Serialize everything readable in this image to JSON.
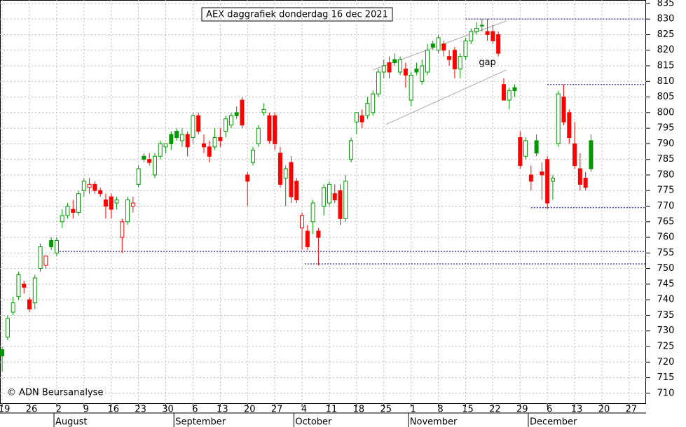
{
  "chart_data": {
    "type": "candlestick",
    "title": "AEX daggrafiek donderdag 16 dec 2021",
    "source": "© ADN Beursanalyse",
    "annotation": {
      "text": "gap",
      "x": 89,
      "y": 816
    },
    "open": [
      724,
      728,
      736,
      741,
      745,
      740,
      739,
      750,
      751,
      759,
      755,
      765,
      767,
      769,
      768,
      775,
      776,
      777,
      775,
      772,
      773,
      771,
      760,
      765,
      770,
      777,
      786,
      785,
      780,
      786,
      789,
      793,
      794,
      791,
      793,
      792,
      799,
      790,
      789,
      789,
      792,
      794,
      796,
      800,
      804,
      780,
      784,
      790,
      800,
      799,
      799,
      787,
      779,
      784,
      778,
      763,
      762,
      765,
      762,
      770,
      771,
      774,
      775,
      766,
      785,
      797,
      799,
      799,
      800,
      806,
      813,
      816,
      817,
      813,
      814,
      804,
      814,
      810,
      813,
      822,
      820,
      822,
      818,
      820,
      814,
      818,
      823,
      826,
      828,
      826,
      826,
      825,
      809,
      804,
      808,
      792,
      786,
      780,
      791,
      781,
      785,
      778,
      790,
      805,
      800,
      790,
      782,
      779,
      791
    ],
    "high": [
      725,
      735,
      741,
      749,
      746,
      741,
      748,
      758,
      754,
      760,
      760,
      769,
      771,
      772,
      775,
      779,
      779,
      778,
      776,
      774,
      774,
      773,
      766,
      773,
      773,
      783,
      787,
      787,
      787,
      791,
      790,
      794,
      795,
      795,
      794,
      800,
      800,
      793,
      791,
      795,
      795,
      799,
      800,
      802,
      805,
      781,
      789,
      796,
      803,
      800,
      800,
      789,
      783,
      786,
      779,
      768,
      764,
      772,
      763,
      777,
      778,
      777,
      777,
      780,
      792,
      800,
      801,
      805,
      807,
      814,
      817,
      818,
      819,
      818,
      816,
      813,
      816,
      817,
      822,
      823,
      825,
      823,
      820,
      821,
      819,
      824,
      827,
      829,
      830,
      830,
      828,
      826,
      811,
      808,
      809,
      794,
      792,
      783,
      793,
      784,
      786,
      780,
      807,
      809,
      801,
      797,
      787,
      781,
      793
    ],
    "low": [
      717,
      727,
      735,
      740,
      742,
      736,
      737,
      749,
      750,
      756,
      754,
      763,
      766,
      766,
      767,
      773,
      774,
      774,
      773,
      766,
      766,
      769,
      755,
      764,
      768,
      776,
      784,
      783,
      779,
      785,
      787,
      788,
      791,
      789,
      786,
      790,
      793,
      787,
      784,
      788,
      789,
      792,
      795,
      798,
      795,
      770,
      783,
      789,
      799,
      790,
      788,
      776,
      770,
      771,
      771,
      756,
      756,
      761,
      751,
      767,
      770,
      771,
      764,
      765,
      784,
      793,
      795,
      798,
      799,
      805,
      811,
      811,
      815,
      812,
      808,
      802,
      812,
      809,
      812,
      820,
      819,
      818,
      815,
      811,
      811,
      817,
      822,
      825,
      826,
      823,
      822,
      818,
      804,
      801,
      805,
      782,
      785,
      775,
      786,
      772,
      769,
      772,
      789,
      796,
      790,
      782,
      775,
      775,
      781
    ],
    "close": [
      722,
      734,
      739,
      748,
      744,
      737,
      747,
      757,
      754,
      757,
      759,
      767,
      770,
      768,
      774,
      778,
      777,
      775,
      774,
      770,
      769,
      772,
      765,
      772,
      771,
      782,
      785,
      784,
      786,
      790,
      790,
      790,
      792,
      793,
      789,
      799,
      794,
      789,
      786,
      792,
      791,
      798,
      799,
      799,
      796,
      778,
      788,
      795,
      801,
      791,
      790,
      777,
      782,
      773,
      772,
      767,
      757,
      771,
      760,
      776,
      777,
      772,
      766,
      778,
      791,
      800,
      797,
      803,
      806,
      813,
      815,
      813,
      816,
      817,
      812,
      812,
      813,
      815,
      820,
      821,
      824,
      820,
      817,
      814,
      818,
      823,
      826,
      827,
      828,
      825,
      823,
      819,
      804,
      807,
      807,
      783,
      791,
      778,
      787,
      780,
      771,
      779,
      806,
      797,
      792,
      783,
      777,
      776,
      782
    ],
    "colors": {
      "up": "#009900",
      "down": "#ff0000"
    },
    "hlines": [
      {
        "y": 830,
        "x0": 85
      },
      {
        "y": 809,
        "x0": 100
      },
      {
        "y": 769.5,
        "x0": 97
      },
      {
        "y": 755.5,
        "x0": 10
      },
      {
        "y": 751.5,
        "x0": 55.5
      }
    ],
    "trendlines": [
      {
        "x": [
          68,
          92.5
        ],
        "y": [
          813.7,
          829.4
        ]
      },
      {
        "x": [
          70.4,
          92.5
        ],
        "y": [
          796.2,
          813.7
        ]
      }
    ],
    "xlim": [
      -0.4,
      118.1
    ],
    "ylim": [
      706.6,
      836.1
    ],
    "yticks": [
      710,
      715,
      720,
      725,
      730,
      735,
      740,
      745,
      750,
      755,
      760,
      765,
      770,
      775,
      780,
      785,
      790,
      795,
      800,
      805,
      810,
      815,
      820,
      825,
      830,
      835
    ],
    "xticks": [
      {
        "value": 0,
        "label": "19"
      },
      {
        "value": 5,
        "label": "26"
      },
      {
        "value": 10,
        "label": "2"
      },
      {
        "value": 15,
        "label": "9"
      },
      {
        "value": 20,
        "label": "16"
      },
      {
        "value": 25,
        "label": "23"
      },
      {
        "value": 30,
        "label": "30"
      },
      {
        "value": 35,
        "label": "6"
      },
      {
        "value": 40,
        "label": "13"
      },
      {
        "value": 45,
        "label": "20"
      },
      {
        "value": 50,
        "label": "27"
      },
      {
        "value": 55,
        "label": "4"
      },
      {
        "value": 60,
        "label": "11"
      },
      {
        "value": 65,
        "label": "18"
      },
      {
        "value": 70,
        "label": "25"
      },
      {
        "value": 75,
        "label": "1"
      },
      {
        "value": 80,
        "label": "8"
      },
      {
        "value": 85,
        "label": "15"
      },
      {
        "value": 90,
        "label": "22"
      },
      {
        "value": 95,
        "label": "29"
      },
      {
        "value": 100,
        "label": "6"
      },
      {
        "value": 105,
        "label": "13"
      },
      {
        "value": 110,
        "label": "20"
      },
      {
        "value": 115,
        "label": "27"
      }
    ],
    "month_ticks": [
      {
        "value": 9.5,
        "label": "August"
      },
      {
        "value": 31.5,
        "label": "September"
      },
      {
        "value": 53.5,
        "label": "October"
      },
      {
        "value": 74.5,
        "label": "November"
      },
      {
        "value": 96.5,
        "label": "December"
      }
    ],
    "grid": true
  }
}
